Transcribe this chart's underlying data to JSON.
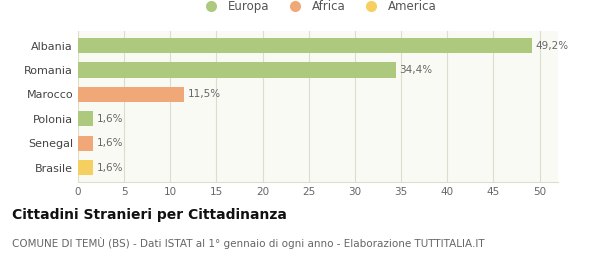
{
  "categories": [
    "Albania",
    "Romania",
    "Marocco",
    "Polonia",
    "Senegal",
    "Brasile"
  ],
  "values": [
    49.2,
    34.4,
    11.5,
    1.6,
    1.6,
    1.6
  ],
  "labels": [
    "49,2%",
    "34,4%",
    "11,5%",
    "1,6%",
    "1,6%",
    "1,6%"
  ],
  "bar_colors": [
    "#adc97e",
    "#adc97e",
    "#f0a878",
    "#adc97e",
    "#f0a878",
    "#f5d060"
  ],
  "legend_items": [
    {
      "label": "Europa",
      "color": "#adc97e"
    },
    {
      "label": "Africa",
      "color": "#f0a878"
    },
    {
      "label": "America",
      "color": "#f5d060"
    }
  ],
  "xlim": [
    0,
    52
  ],
  "xticks": [
    0,
    5,
    10,
    15,
    20,
    25,
    30,
    35,
    40,
    45,
    50
  ],
  "title": "Cittadini Stranieri per Cittadinanza",
  "subtitle": "COMUNE DI TEMÙ (BS) - Dati ISTAT al 1° gennaio di ogni anno - Elaborazione TUTTITALIA.IT",
  "background_color": "#ffffff",
  "plot_bg_color": "#fafaf5",
  "grid_color": "#ddddcc",
  "bar_height": 0.62,
  "title_fontsize": 10,
  "subtitle_fontsize": 7.5,
  "label_fontsize": 7.5,
  "tick_fontsize": 7.5,
  "legend_fontsize": 8.5,
  "ytick_fontsize": 8
}
